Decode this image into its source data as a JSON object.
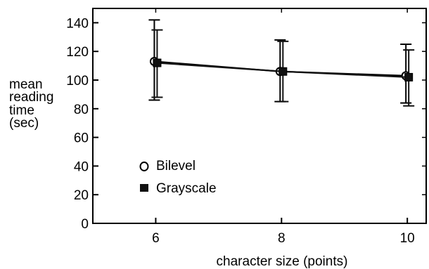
{
  "chart_data": {
    "type": "line",
    "title": "",
    "xlabel": "character size (points)",
    "ylabel_lines": [
      "mean",
      "reading",
      "time",
      "(sec)"
    ],
    "x": [
      6,
      8,
      10
    ],
    "xlim": [
      5,
      10.3
    ],
    "ylim": [
      0,
      150
    ],
    "xticks": [
      6,
      8,
      10
    ],
    "yticks": [
      0,
      20,
      40,
      60,
      80,
      100,
      120,
      140
    ],
    "grid": false,
    "legend_position": "left-middle",
    "series": [
      {
        "name": "Bilevel",
        "marker": "circle",
        "values": [
          113,
          106,
          103
        ],
        "error_low": [
          86,
          85,
          84
        ],
        "error_high": [
          142,
          128,
          125
        ]
      },
      {
        "name": "Grayscale",
        "marker": "square",
        "values": [
          112,
          106,
          102
        ],
        "error_low": [
          88,
          85,
          82
        ],
        "error_high": [
          135,
          127,
          121
        ]
      }
    ]
  }
}
